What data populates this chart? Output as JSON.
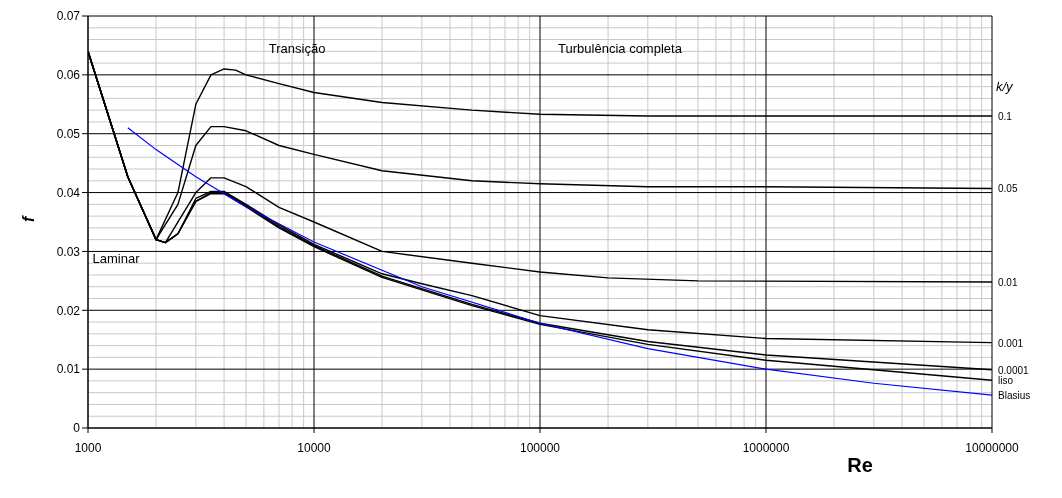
{
  "chart_data": {
    "type": "line",
    "xlabel": "Re",
    "ylabel": "f",
    "legend_title": "k/y",
    "log": "x",
    "grid": true,
    "marker": "none",
    "line_style": "solid",
    "xlim": [
      1000,
      10000000
    ],
    "xticks": [
      1000,
      10000,
      100000,
      1000000,
      10000000
    ],
    "ylim": [
      0,
      0.07
    ],
    "yticks": [
      0,
      0.01,
      0.02,
      0.03,
      0.04,
      0.05,
      0.06,
      0.07
    ],
    "annotations": [
      "Transição",
      "Turbulência completa",
      "Laminar"
    ],
    "series": [
      {
        "name": "0.1",
        "color": "#000000",
        "x": [
          1000,
          1500,
          2000,
          2500,
          3000,
          3500,
          4000,
          4500,
          5000,
          7000,
          10000,
          20000,
          50000,
          100000,
          300000,
          10000000
        ],
        "values": [
          0.064,
          0.0427,
          0.032,
          0.04,
          0.055,
          0.06,
          0.061,
          0.0608,
          0.06,
          0.0585,
          0.057,
          0.0553,
          0.054,
          0.0533,
          0.053,
          0.053
        ]
      },
      {
        "name": "0.05",
        "color": "#000000",
        "x": [
          1000,
          1500,
          2000,
          2500,
          3000,
          3500,
          4000,
          5000,
          7000,
          10000,
          20000,
          50000,
          100000,
          300000,
          1000000,
          10000000
        ],
        "values": [
          0.064,
          0.0427,
          0.032,
          0.038,
          0.048,
          0.0512,
          0.0512,
          0.0505,
          0.048,
          0.0465,
          0.0437,
          0.042,
          0.0415,
          0.041,
          0.041,
          0.0407
        ]
      },
      {
        "name": "0.01",
        "color": "#000000",
        "x": [
          1000,
          1500,
          2000,
          2200,
          3000,
          3500,
          4000,
          5000,
          7000,
          10000,
          20000,
          50000,
          100000,
          200000,
          500000,
          10000000
        ],
        "values": [
          0.064,
          0.0427,
          0.032,
          0.0315,
          0.04,
          0.0425,
          0.0425,
          0.041,
          0.0375,
          0.035,
          0.03,
          0.028,
          0.0265,
          0.0255,
          0.025,
          0.0248
        ]
      },
      {
        "name": "0.001",
        "color": "#000000",
        "x": [
          1000,
          1500,
          2000,
          2200,
          2500,
          3000,
          3500,
          4000,
          5000,
          7000,
          10000,
          20000,
          30000,
          50000,
          100000,
          300000,
          1000000,
          10000000
        ],
        "values": [
          0.064,
          0.0427,
          0.032,
          0.0315,
          0.033,
          0.039,
          0.0402,
          0.0402,
          0.038,
          0.0345,
          0.0312,
          0.0262,
          0.0245,
          0.0225,
          0.0191,
          0.0167,
          0.0152,
          0.0145
        ]
      },
      {
        "name": "0.0001",
        "color": "#000000",
        "x": [
          1000,
          1500,
          2000,
          2200,
          2500,
          3000,
          3500,
          4000,
          5000,
          7000,
          10000,
          20000,
          50000,
          100000,
          300000,
          1000000,
          10000000
        ],
        "values": [
          0.064,
          0.0427,
          0.032,
          0.0315,
          0.033,
          0.0385,
          0.04,
          0.04,
          0.0378,
          0.0342,
          0.031,
          0.0258,
          0.021,
          0.0178,
          0.0147,
          0.0124,
          0.0099
        ]
      },
      {
        "name": "liso",
        "color": "#000000",
        "x": [
          1000,
          1500,
          2000,
          2200,
          2500,
          3000,
          3500,
          4000,
          5000,
          7000,
          10000,
          20000,
          50000,
          100000,
          300000,
          1000000,
          10000000
        ],
        "values": [
          0.064,
          0.0427,
          0.032,
          0.0315,
          0.033,
          0.0385,
          0.0398,
          0.0398,
          0.0376,
          0.034,
          0.0308,
          0.0256,
          0.0208,
          0.0176,
          0.0142,
          0.0115,
          0.0081
        ]
      },
      {
        "name": "Blasius",
        "color": "#0000ff",
        "x": [
          1500,
          2000,
          3000,
          5000,
          10000,
          30000,
          100000,
          300000,
          1000000,
          3000000,
          10000000
        ],
        "values": [
          0.051,
          0.0473,
          0.0427,
          0.0376,
          0.0316,
          0.024,
          0.0178,
          0.0135,
          0.01,
          0.0076,
          0.0056
        ]
      }
    ]
  }
}
